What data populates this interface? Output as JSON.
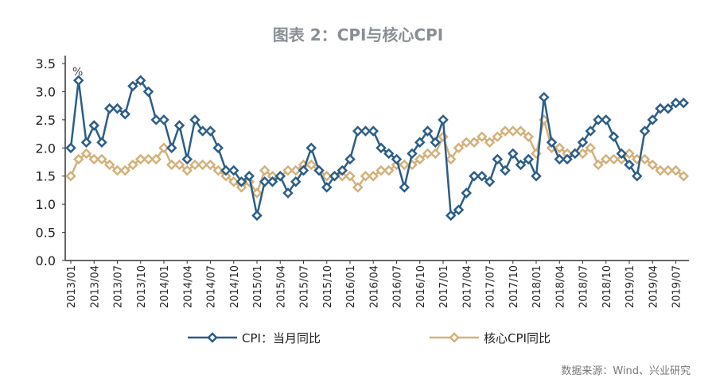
{
  "chart_data": {
    "type": "line",
    "title": "图表 2：CPI与核心CPI",
    "unit_label": "%",
    "source": "数据来源：Wind、兴业研究",
    "ylim": [
      0,
      3.5
    ],
    "yticks": [
      "0.0",
      "0.5",
      "1.0",
      "1.5",
      "2.0",
      "2.5",
      "3.0",
      "3.5"
    ],
    "x_start": "2013/01",
    "x_tick_labels": [
      "2013/01",
      "2013/04",
      "2013/07",
      "2013/10",
      "2014/01",
      "2014/04",
      "2014/07",
      "2014/10",
      "2015/01",
      "2015/04",
      "2015/07",
      "2015/10",
      "2016/01",
      "2016/04",
      "2016/07",
      "2016/10",
      "2017/01",
      "2017/04",
      "2017/07",
      "2017/10",
      "2018/01",
      "2018/04",
      "2018/07",
      "2018/10",
      "2019/01",
      "2019/04",
      "2019/07"
    ],
    "legend_position": "bottom",
    "series": [
      {
        "name": "CPI：当月同比",
        "color": "#2b5d87",
        "values": [
          2.0,
          3.2,
          2.1,
          2.4,
          2.1,
          2.7,
          2.7,
          2.6,
          3.1,
          3.2,
          3.0,
          2.5,
          2.5,
          2.0,
          2.4,
          1.8,
          2.5,
          2.3,
          2.3,
          2.0,
          1.6,
          1.6,
          1.4,
          1.5,
          0.8,
          1.4,
          1.4,
          1.5,
          1.2,
          1.4,
          1.6,
          2.0,
          1.6,
          1.3,
          1.5,
          1.6,
          1.8,
          2.3,
          2.3,
          2.3,
          2.0,
          1.9,
          1.8,
          1.3,
          1.9,
          2.1,
          2.3,
          2.1,
          2.5,
          0.8,
          0.9,
          1.2,
          1.5,
          1.5,
          1.4,
          1.8,
          1.6,
          1.9,
          1.7,
          1.8,
          1.5,
          2.9,
          2.1,
          1.8,
          1.8,
          1.9,
          2.1,
          2.3,
          2.5,
          2.5,
          2.2,
          1.9,
          1.7,
          1.5,
          2.3,
          2.5,
          2.7,
          2.7,
          2.8,
          2.8
        ]
      },
      {
        "name": "核心CPI同比",
        "color": "#d4b07a",
        "values": [
          1.5,
          1.8,
          1.9,
          1.8,
          1.8,
          1.7,
          1.6,
          1.6,
          1.7,
          1.8,
          1.8,
          1.8,
          2.0,
          1.7,
          1.7,
          1.6,
          1.7,
          1.7,
          1.7,
          1.6,
          1.5,
          1.4,
          1.3,
          1.4,
          1.2,
          1.6,
          1.5,
          1.5,
          1.6,
          1.6,
          1.7,
          1.7,
          1.6,
          1.5,
          1.5,
          1.5,
          1.5,
          1.3,
          1.5,
          1.5,
          1.6,
          1.6,
          1.7,
          1.7,
          1.7,
          1.8,
          1.9,
          1.9,
          2.2,
          1.8,
          2.0,
          2.1,
          2.1,
          2.2,
          2.1,
          2.2,
          2.3,
          2.3,
          2.3,
          2.2,
          1.9,
          2.5,
          2.0,
          2.0,
          1.9,
          1.9,
          1.9,
          2.0,
          1.7,
          1.8,
          1.8,
          1.8,
          1.9,
          1.8,
          1.8,
          1.7,
          1.6,
          1.6,
          1.6,
          1.5
        ]
      }
    ]
  }
}
